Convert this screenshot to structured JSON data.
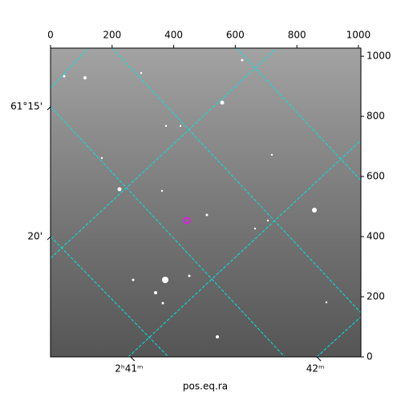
{
  "chart_data": {
    "type": "image",
    "xlabel": "pos.eq.ra",
    "xlim": [
      0,
      1008
    ],
    "xticks": [
      0,
      200,
      400,
      600,
      800,
      1000
    ],
    "ylim": [
      0,
      1027
    ],
    "yticks": [
      0,
      200,
      400,
      600,
      800,
      1000
    ],
    "ra_ticks": [
      {
        "value": 260,
        "label": "2ʰ41ᵐ"
      },
      {
        "value": 865,
        "label": "42ᵐ"
      }
    ],
    "dec_ticks": [
      {
        "value": 832,
        "label": "61°15'"
      },
      {
        "value": 400,
        "label": "20'"
      }
    ],
    "grid_color": "#00e5e5"
  }
}
